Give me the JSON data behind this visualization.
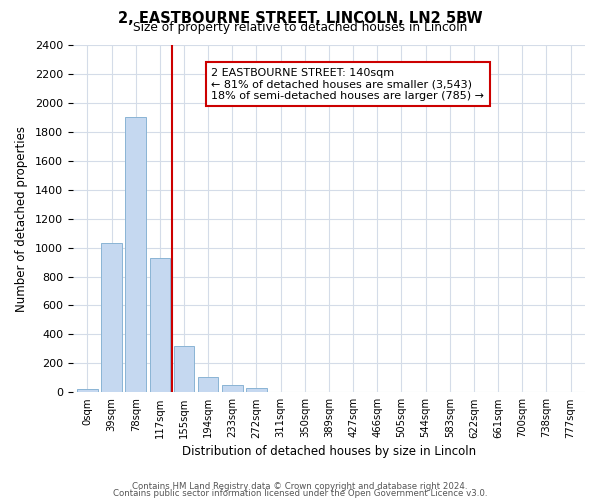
{
  "title": "2, EASTBOURNE STREET, LINCOLN, LN2 5BW",
  "subtitle": "Size of property relative to detached houses in Lincoln",
  "xlabel": "Distribution of detached houses by size in Lincoln",
  "ylabel": "Number of detached properties",
  "bin_labels": [
    "0sqm",
    "39sqm",
    "78sqm",
    "117sqm",
    "155sqm",
    "194sqm",
    "233sqm",
    "272sqm",
    "311sqm",
    "350sqm",
    "389sqm",
    "427sqm",
    "466sqm",
    "505sqm",
    "544sqm",
    "583sqm",
    "622sqm",
    "661sqm",
    "700sqm",
    "738sqm",
    "777sqm"
  ],
  "bar_values": [
    25,
    1030,
    1900,
    930,
    320,
    105,
    50,
    30,
    0,
    0,
    0,
    0,
    0,
    0,
    0,
    0,
    0,
    0,
    0,
    0,
    0
  ],
  "bar_color": "#c5d8f0",
  "bar_edge_color": "#8ab4d4",
  "property_line_x": 3.5,
  "property_line_color": "#cc0000",
  "ylim": [
    0,
    2400
  ],
  "yticks": [
    0,
    200,
    400,
    600,
    800,
    1000,
    1200,
    1400,
    1600,
    1800,
    2000,
    2200,
    2400
  ],
  "annotation_title": "2 EASTBOURNE STREET: 140sqm",
  "annotation_line1": "← 81% of detached houses are smaller (3,543)",
  "annotation_line2": "18% of semi-detached houses are larger (785) →",
  "annotation_box_color": "#ffffff",
  "annotation_box_edge_color": "#cc0000",
  "footer_line1": "Contains HM Land Registry data © Crown copyright and database right 2024.",
  "footer_line2": "Contains public sector information licensed under the Open Government Licence v3.0.",
  "background_color": "#ffffff",
  "grid_color": "#d4dce8"
}
